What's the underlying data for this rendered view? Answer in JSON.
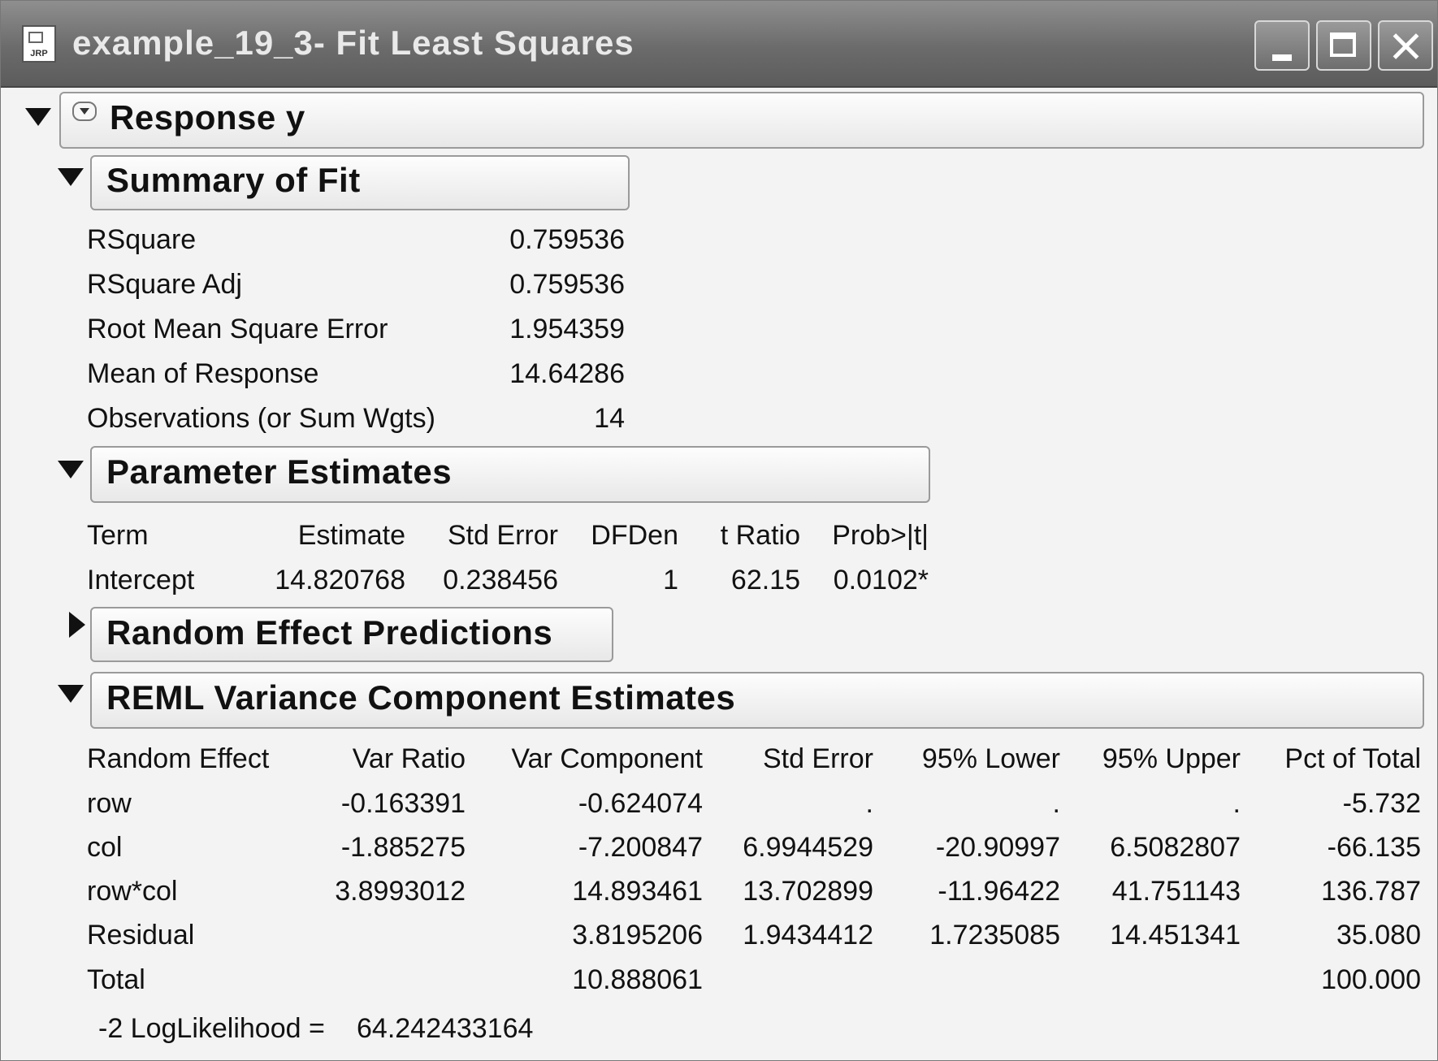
{
  "window": {
    "title": "example_19_3- Fit Least Squares",
    "icon_label": "JRP",
    "controls": [
      "minimize-icon",
      "maximize-icon",
      "close-icon"
    ]
  },
  "response": {
    "label": "Response y"
  },
  "summary_of_fit": {
    "label": "Summary of Fit",
    "rows": [
      {
        "name": "RSquare",
        "value": "0.759536"
      },
      {
        "name": "RSquare Adj",
        "value": "0.759536"
      },
      {
        "name": "Root Mean Square Error",
        "value": "1.954359"
      },
      {
        "name": "Mean of Response",
        "value": "14.64286"
      },
      {
        "name": "Observations (or Sum Wgts)",
        "value": "14"
      }
    ]
  },
  "parameter_estimates": {
    "label": "Parameter Estimates",
    "headers": [
      "Term",
      "Estimate",
      "Std Error",
      "DFDen",
      "t Ratio",
      "Prob>|t|"
    ],
    "rows": [
      [
        "Intercept",
        "14.820768",
        "0.238456",
        "1",
        "62.15",
        "0.0102*"
      ]
    ]
  },
  "random_effect_predictions": {
    "label": "Random Effect Predictions"
  },
  "reml": {
    "label": "REML Variance Component Estimates",
    "headers": [
      "Random Effect",
      "Var Ratio",
      "Var Component",
      "Std Error",
      "95% Lower",
      "95% Upper",
      "Pct of Total"
    ],
    "rows": [
      [
        "row",
        "-0.163391",
        "-0.624074",
        ".",
        ".",
        ".",
        "-5.732"
      ],
      [
        "col",
        "-1.885275",
        "-7.200847",
        "6.9944529",
        "-20.90997",
        "6.5082807",
        "-66.135"
      ],
      [
        "row*col",
        "3.8993012",
        "14.893461",
        "13.702899",
        "-11.96422",
        "41.751143",
        "136.787"
      ],
      [
        "Residual",
        "",
        "3.8195206",
        "1.9434412",
        "1.7235085",
        "14.451341",
        "35.080"
      ],
      [
        "Total",
        "",
        "10.888061",
        "",
        "",
        "",
        "100.000"
      ]
    ],
    "loglik_label": "-2 LogLikelihood =",
    "loglik_value": "64.242433164"
  }
}
